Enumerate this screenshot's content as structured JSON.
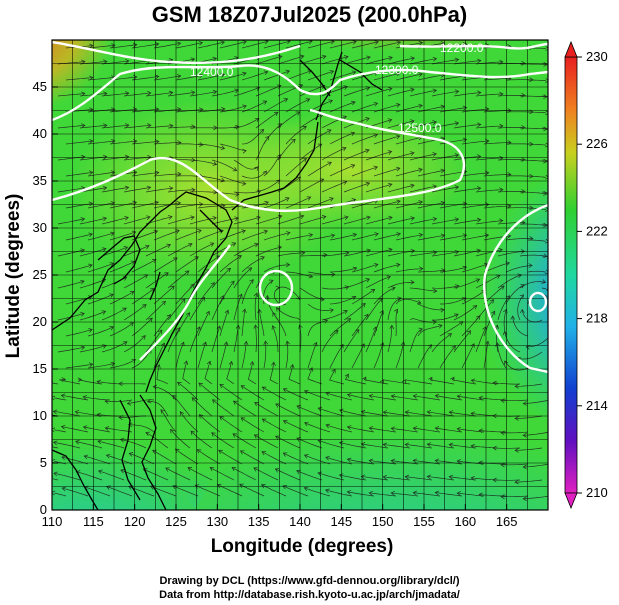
{
  "title": "GSM 18Z07Jul2025 (200.0hPa)",
  "x_axis": {
    "label": "Longitude (degrees)",
    "range": [
      110,
      170
    ],
    "ticks": [
      "110",
      "115",
      "120",
      "125",
      "130",
      "135",
      "140",
      "145",
      "150",
      "155",
      "160",
      "165"
    ]
  },
  "y_axis": {
    "label": "Latitude  (degrees)",
    "range": [
      0,
      50
    ],
    "ticks": [
      "0",
      "5",
      "10",
      "15",
      "20",
      "25",
      "30",
      "35",
      "40",
      "45"
    ]
  },
  "colorbar": {
    "ticks": [
      "230",
      "226",
      "222",
      "218",
      "214",
      "210"
    ],
    "range": [
      210,
      230
    ]
  },
  "contour_labels": [
    "12200.0",
    "12300.0",
    "12400.0",
    "12500.0"
  ],
  "credits": {
    "line1": "Drawing by DCL (https://www.gfd-dennou.org/library/dcl/)",
    "line2": "Data from http://database.rish.kyoto-u.ac.jp/arch/jmadata/"
  },
  "colors": {
    "background_field": "#3ad43a",
    "high_value": "#e83020",
    "low_value": "#1060d0",
    "contour": "#ffffff",
    "coastline": "#000000"
  }
}
